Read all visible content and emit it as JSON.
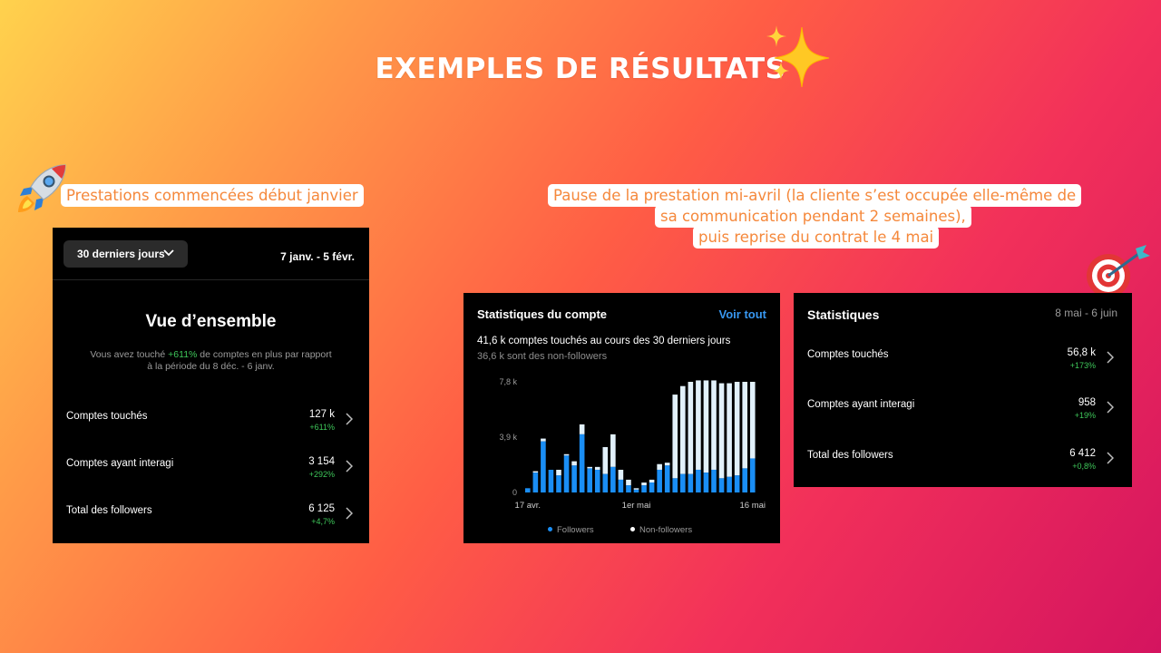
{
  "header": {
    "title": "EXEMPLES DE RÉSULTATS"
  },
  "notes": {
    "left": "Prestations commencées début janvier",
    "right_lines": [
      "Pause de la prestation mi-avril (la cliente s’est occupée elle-même de",
      "sa communication pendant 2 semaines),",
      "puis reprise du contrat le 4 mai"
    ]
  },
  "icons": {
    "title_emoji": "sparkles-icon",
    "left_emoji": "rocket-icon",
    "right_emoji": "target-icon"
  },
  "colors": {
    "followers": "#1a8ef5",
    "non_followers": "#e2f1fb",
    "positive": "#3ec75a",
    "link": "#3897f0",
    "note_text": "#f5883b"
  },
  "overview": {
    "range_label": "30 derniers jours",
    "date_range": "7 janv. - 5 févr.",
    "title": "Vue d’ensemble",
    "desc_before": "Vous avez touché ",
    "desc_highlight": "+611%",
    "desc_after": " de comptes en plus par rapport à la période du 8 déc. - 6 janv.",
    "rows": [
      {
        "label": "Comptes touchés",
        "value": "127 k",
        "change": "+611%"
      },
      {
        "label": "Comptes ayant interagi",
        "value": "3 154",
        "change": "+292%"
      },
      {
        "label": "Total des followers",
        "value": "6 125",
        "change": "+4,7%"
      }
    ]
  },
  "account_stats": {
    "title": "Statistiques du compte",
    "link": "Voir tout",
    "reached": "41,6 k comptes touchés au cours des 30 derniers jours",
    "non_followers": "36,6 k sont des non-followers",
    "legend": {
      "followers": "Followers",
      "non_followers": "Non-followers"
    }
  },
  "stats": {
    "title": "Statistiques",
    "date_range": "8 mai - 6 juin",
    "rows": [
      {
        "label": "Comptes touchés",
        "value": "56,8 k",
        "change": "+173%"
      },
      {
        "label": "Comptes ayant interagi",
        "value": "958",
        "change": "+19%"
      },
      {
        "label": "Total des followers",
        "value": "6 412",
        "change": "+0,8%"
      }
    ]
  },
  "chart_data": {
    "type": "bar",
    "stacked": true,
    "y_ticks": [
      {
        "value": 0,
        "label": "0"
      },
      {
        "value": 3.9,
        "label": "3,9 k"
      },
      {
        "value": 7.8,
        "label": "7,8 k"
      }
    ],
    "ylim": [
      0,
      7.8
    ],
    "x_ticks": [
      {
        "index": 0,
        "label": "17 avr."
      },
      {
        "index": 14,
        "label": "1er mai"
      },
      {
        "index": 29,
        "label": "16 mai"
      }
    ],
    "grid": false,
    "legend": "bottom",
    "series": [
      {
        "name": "Followers",
        "color": "#1a8ef5",
        "values": [
          0.3,
          1.4,
          3.6,
          1.6,
          1.2,
          2.6,
          1.9,
          4.1,
          1.7,
          1.6,
          1.3,
          1.8,
          0.9,
          0.5,
          0.2,
          0.5,
          0.7,
          1.6,
          1.9,
          1.0,
          1.3,
          1.3,
          1.6,
          1.4,
          1.6,
          1.0,
          1.1,
          1.2,
          1.7,
          2.4
        ]
      },
      {
        "name": "Non-followers",
        "color": "#e2f1fb",
        "values": [
          0.0,
          0.1,
          0.2,
          0.0,
          0.4,
          0.1,
          0.3,
          0.7,
          0.1,
          0.2,
          1.9,
          2.3,
          0.7,
          0.4,
          0.1,
          0.2,
          0.2,
          0.4,
          0.2,
          5.9,
          6.2,
          6.5,
          6.3,
          6.5,
          6.3,
          6.7,
          6.6,
          6.6,
          6.1,
          5.4
        ]
      }
    ]
  }
}
